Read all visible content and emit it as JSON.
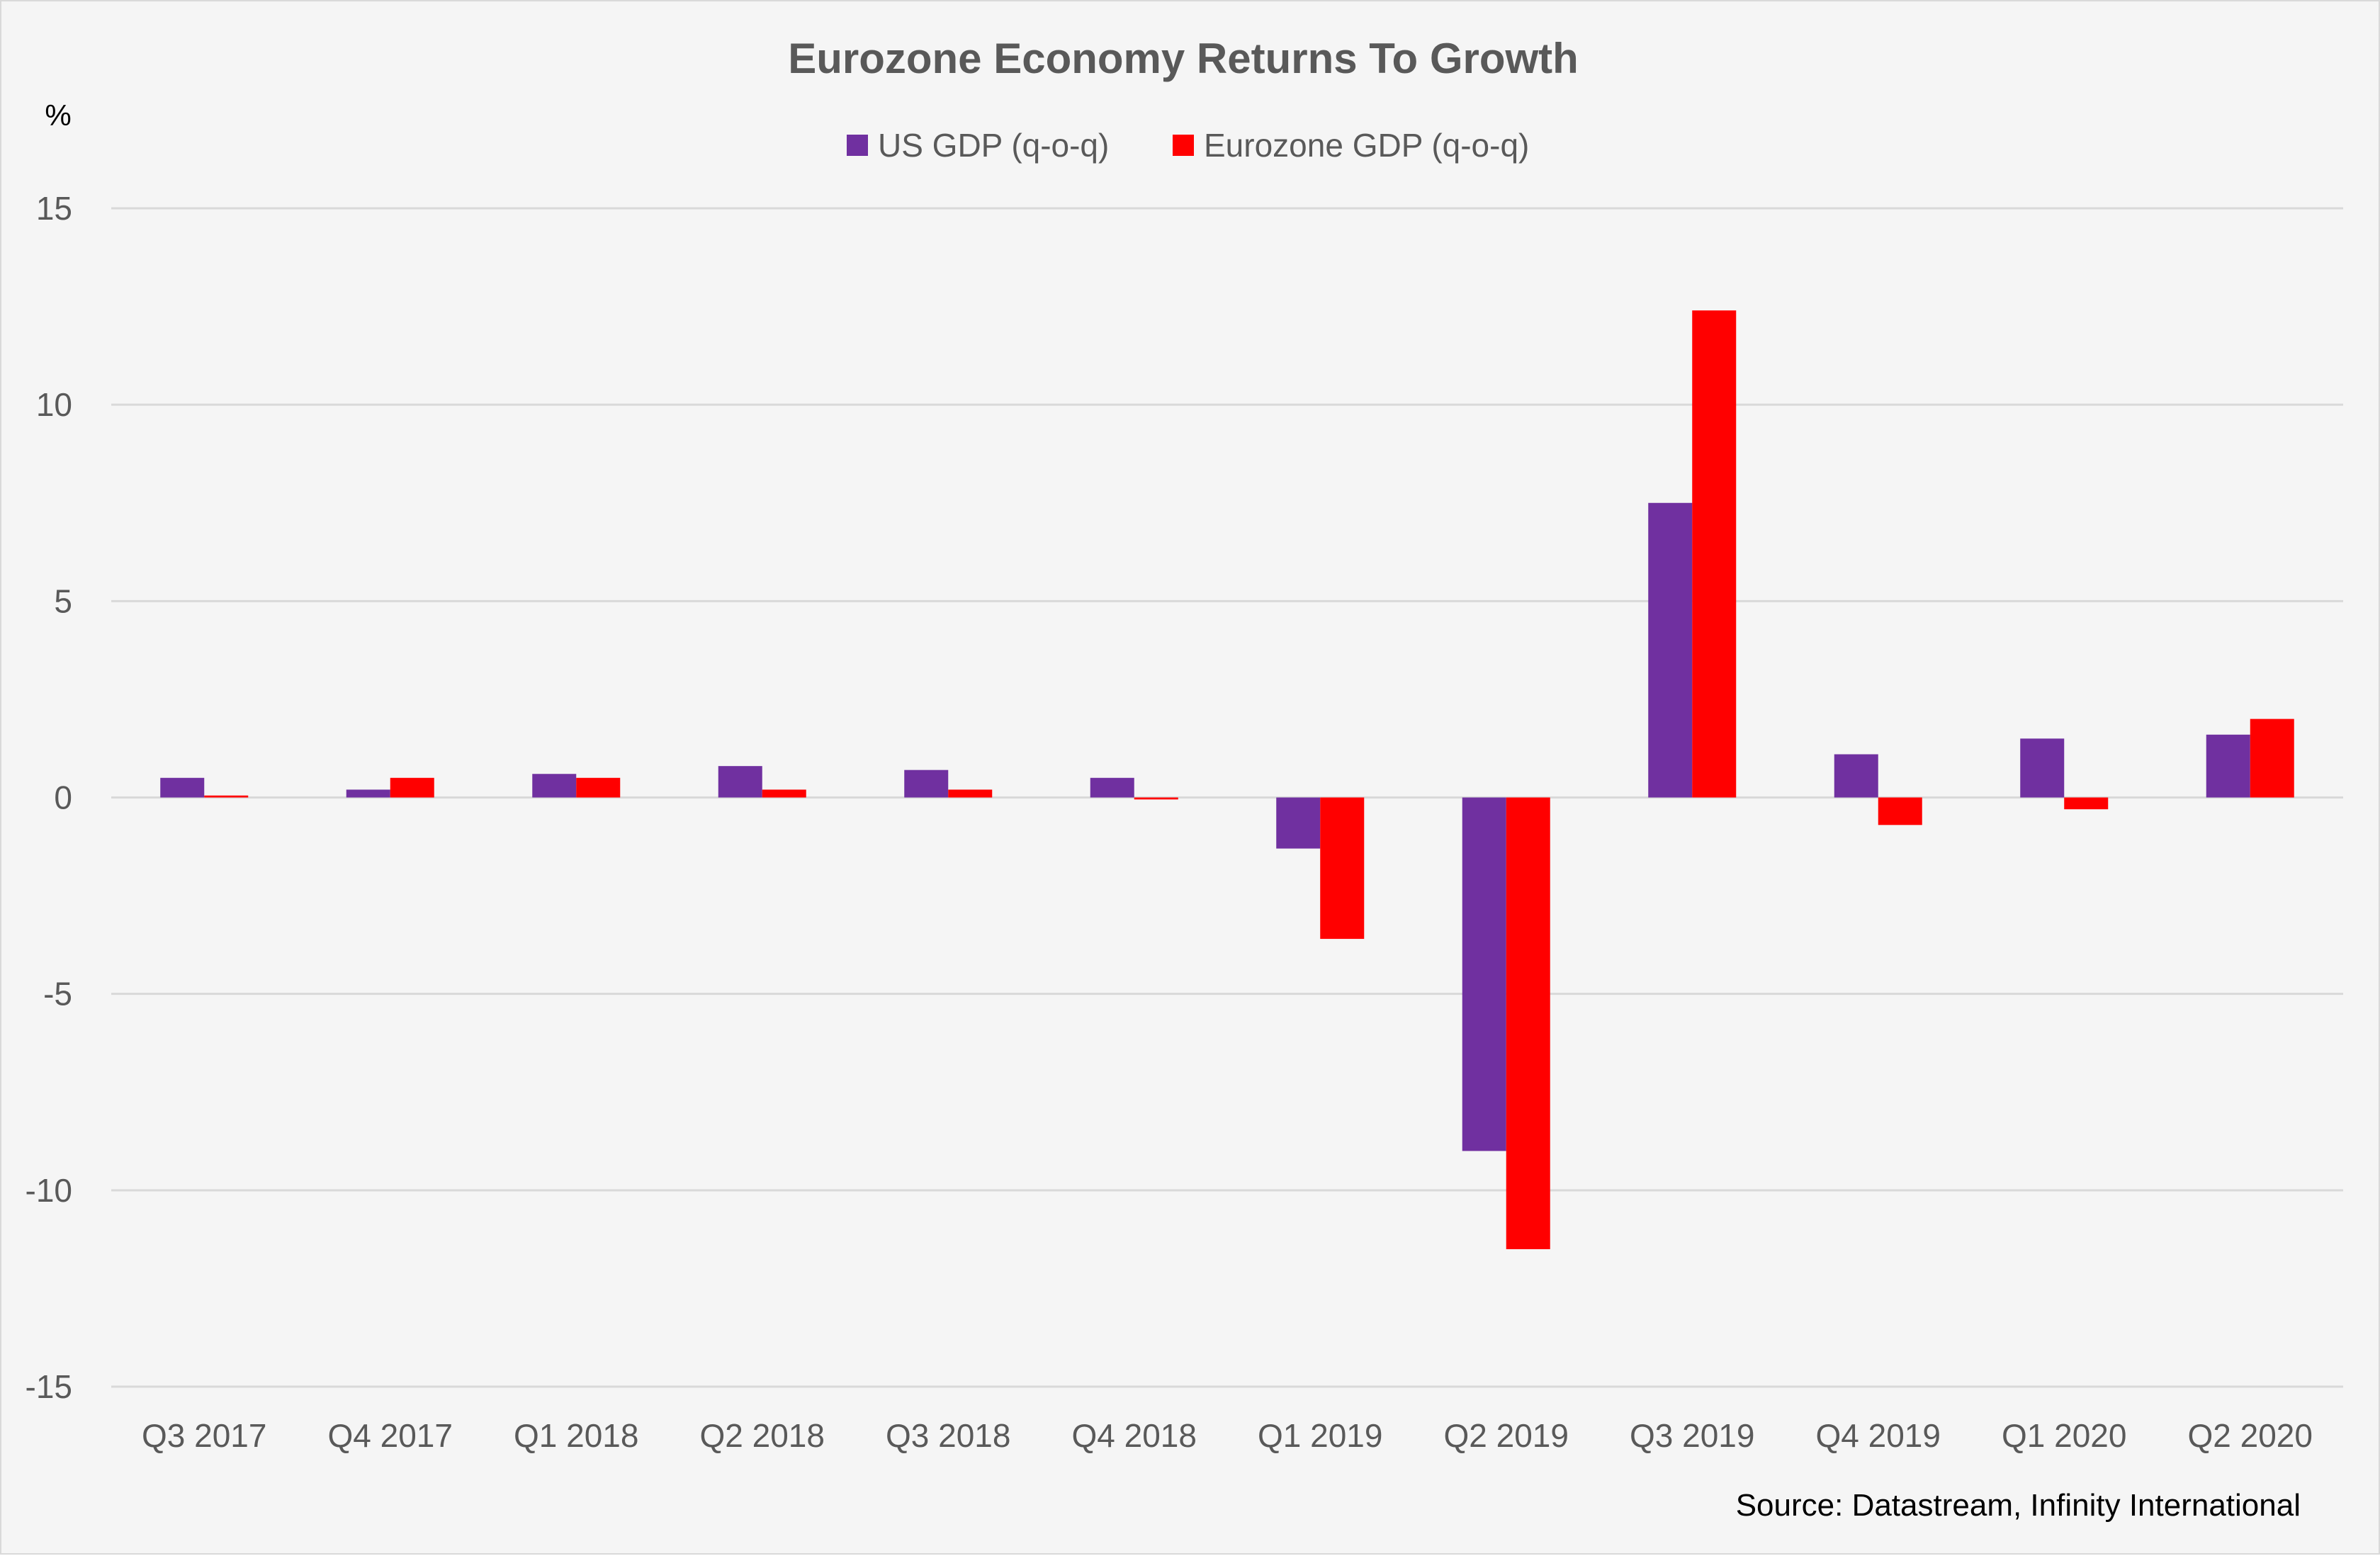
{
  "chart_data": {
    "type": "bar",
    "title": "Eurozone Economy Returns To Growth",
    "ylabel": "%",
    "xlabel": "",
    "categories": [
      "Q3 2017",
      "Q4 2017",
      "Q1 2018",
      "Q2 2018",
      "Q3 2018",
      "Q4 2018",
      "Q1 2019",
      "Q2 2019",
      "Q3 2019",
      "Q4 2019",
      "Q1 2020",
      "Q2 2020"
    ],
    "series": [
      {
        "name": "US GDP (q-o-q)",
        "color": "#7030a0",
        "values": [
          0.5,
          0.2,
          0.6,
          0.8,
          0.7,
          0.5,
          -1.3,
          -9.0,
          7.5,
          1.1,
          1.5,
          1.6
        ]
      },
      {
        "name": "Eurozone GDP (q-o-q)",
        "color": "#ff0000",
        "values": [
          0.05,
          0.5,
          0.5,
          0.2,
          0.2,
          -0.05,
          -3.6,
          -11.5,
          12.4,
          -0.7,
          -0.3,
          2.0
        ]
      }
    ],
    "ylim": [
      -15,
      15
    ],
    "yticks": [
      15,
      10,
      5,
      0,
      -5,
      -10,
      -15
    ],
    "ytick_labels": [
      "15",
      "10",
      "5",
      "0",
      "-5",
      "-10",
      "-15"
    ],
    "grid": true,
    "legend_position": "top-center",
    "source": "Source: Datastream, Infinity International"
  }
}
